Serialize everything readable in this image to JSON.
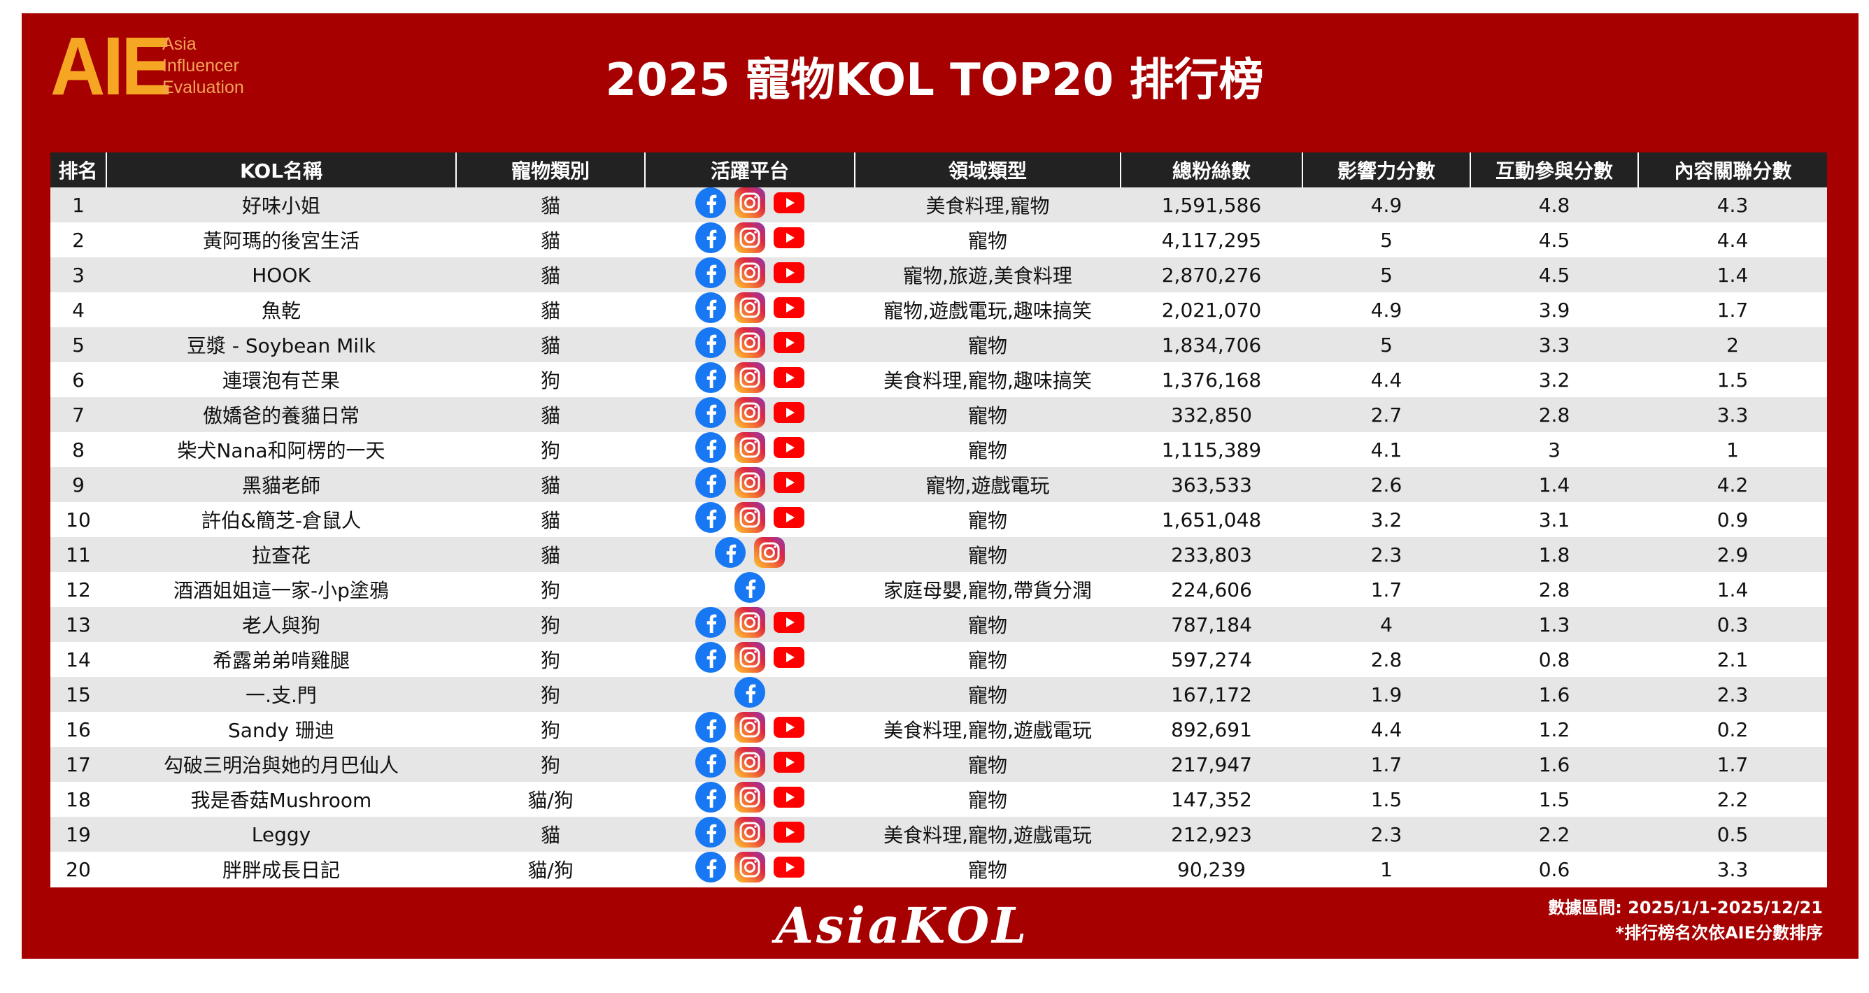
{
  "logo": {
    "mark": "AIE",
    "line1": "Asia",
    "line2": "Influencer",
    "line3": "Evaluation"
  },
  "title": "2025 寵物KOL TOP20 排行榜",
  "columns": [
    "排名",
    "KOL名稱",
    "寵物類別",
    "活躍平台",
    "領域類型",
    "總粉絲數",
    "影響力分數",
    "互動參與分數",
    "內容關聯分數"
  ],
  "colors": {
    "frame": "#a60000",
    "header_bg": "#222222",
    "row_alt": "#e6e6e6",
    "logo": "#f5a623",
    "facebook": "#1877f2",
    "youtube": "#ff0000"
  },
  "rows": [
    {
      "rank": "1",
      "name": "好味小姐",
      "pet": "貓",
      "platforms": [
        "facebook",
        "instagram",
        "youtube"
      ],
      "domain": "美食料理,寵物",
      "fans": "1,591,586",
      "influence": "4.9",
      "engagement": "4.8",
      "relevance": "4.3"
    },
    {
      "rank": "2",
      "name": "黃阿瑪的後宮生活",
      "pet": "貓",
      "platforms": [
        "facebook",
        "instagram",
        "youtube"
      ],
      "domain": "寵物",
      "fans": "4,117,295",
      "influence": "5",
      "engagement": "4.5",
      "relevance": "4.4"
    },
    {
      "rank": "3",
      "name": "HOOK",
      "pet": "貓",
      "platforms": [
        "facebook",
        "instagram",
        "youtube"
      ],
      "domain": "寵物,旅遊,美食料理",
      "fans": "2,870,276",
      "influence": "5",
      "engagement": "4.5",
      "relevance": "1.4"
    },
    {
      "rank": "4",
      "name": "魚乾",
      "pet": "貓",
      "platforms": [
        "facebook",
        "instagram",
        "youtube"
      ],
      "domain": "寵物,遊戲電玩,趣味搞笑",
      "fans": "2,021,070",
      "influence": "4.9",
      "engagement": "3.9",
      "relevance": "1.7"
    },
    {
      "rank": "5",
      "name": "豆漿 - Soybean Milk",
      "pet": "貓",
      "platforms": [
        "facebook",
        "instagram",
        "youtube"
      ],
      "domain": "寵物",
      "fans": "1,834,706",
      "influence": "5",
      "engagement": "3.3",
      "relevance": "2"
    },
    {
      "rank": "6",
      "name": "連環泡有芒果",
      "pet": "狗",
      "platforms": [
        "facebook",
        "instagram",
        "youtube"
      ],
      "domain": "美食料理,寵物,趣味搞笑",
      "fans": "1,376,168",
      "influence": "4.4",
      "engagement": "3.2",
      "relevance": "1.5"
    },
    {
      "rank": "7",
      "name": "傲嬌爸的養貓日常",
      "pet": "貓",
      "platforms": [
        "facebook",
        "instagram",
        "youtube"
      ],
      "domain": "寵物",
      "fans": "332,850",
      "influence": "2.7",
      "engagement": "2.8",
      "relevance": "3.3"
    },
    {
      "rank": "8",
      "name": "柴犬Nana和阿楞的一天",
      "pet": "狗",
      "platforms": [
        "facebook",
        "instagram",
        "youtube"
      ],
      "domain": "寵物",
      "fans": "1,115,389",
      "influence": "4.1",
      "engagement": "3",
      "relevance": "1"
    },
    {
      "rank": "9",
      "name": "黑貓老師",
      "pet": "貓",
      "platforms": [
        "facebook",
        "instagram",
        "youtube"
      ],
      "domain": "寵物,遊戲電玩",
      "fans": "363,533",
      "influence": "2.6",
      "engagement": "1.4",
      "relevance": "4.2"
    },
    {
      "rank": "10",
      "name": "許伯&簡芝-倉鼠人",
      "pet": "貓",
      "platforms": [
        "facebook",
        "instagram",
        "youtube"
      ],
      "domain": "寵物",
      "fans": "1,651,048",
      "influence": "3.2",
      "engagement": "3.1",
      "relevance": "0.9"
    },
    {
      "rank": "11",
      "name": "拉查花",
      "pet": "貓",
      "platforms": [
        "facebook",
        "instagram"
      ],
      "domain": "寵物",
      "fans": "233,803",
      "influence": "2.3",
      "engagement": "1.8",
      "relevance": "2.9"
    },
    {
      "rank": "12",
      "name": "酒酒姐姐這一家-小p塗鴉",
      "pet": "狗",
      "platforms": [
        "facebook"
      ],
      "domain": "家庭母嬰,寵物,帶貨分潤",
      "fans": "224,606",
      "influence": "1.7",
      "engagement": "2.8",
      "relevance": "1.4"
    },
    {
      "rank": "13",
      "name": "老人與狗",
      "pet": "狗",
      "platforms": [
        "facebook",
        "instagram",
        "youtube"
      ],
      "domain": "寵物",
      "fans": "787,184",
      "influence": "4",
      "engagement": "1.3",
      "relevance": "0.3"
    },
    {
      "rank": "14",
      "name": "希露弟弟啃雞腿",
      "pet": "狗",
      "platforms": [
        "facebook",
        "instagram",
        "youtube"
      ],
      "domain": "寵物",
      "fans": "597,274",
      "influence": "2.8",
      "engagement": "0.8",
      "relevance": "2.1"
    },
    {
      "rank": "15",
      "name": "一.支.門",
      "pet": "狗",
      "platforms": [
        "facebook"
      ],
      "domain": "寵物",
      "fans": "167,172",
      "influence": "1.9",
      "engagement": "1.6",
      "relevance": "2.3"
    },
    {
      "rank": "16",
      "name": "Sandy 珊迪",
      "pet": "狗",
      "platforms": [
        "facebook",
        "instagram",
        "youtube"
      ],
      "domain": "美食料理,寵物,遊戲電玩",
      "fans": "892,691",
      "influence": "4.4",
      "engagement": "1.2",
      "relevance": "0.2"
    },
    {
      "rank": "17",
      "name": "勾破三明治與她的月巴仙人",
      "pet": "狗",
      "platforms": [
        "facebook",
        "instagram",
        "youtube"
      ],
      "domain": "寵物",
      "fans": "217,947",
      "influence": "1.7",
      "engagement": "1.6",
      "relevance": "1.7"
    },
    {
      "rank": "18",
      "name": "我是香菇Mushroom",
      "pet": "貓/狗",
      "platforms": [
        "facebook",
        "instagram",
        "youtube"
      ],
      "domain": "寵物",
      "fans": "147,352",
      "influence": "1.5",
      "engagement": "1.5",
      "relevance": "2.2"
    },
    {
      "rank": "19",
      "name": "Leggy",
      "pet": "貓",
      "platforms": [
        "facebook",
        "instagram",
        "youtube"
      ],
      "domain": "美食料理,寵物,遊戲電玩",
      "fans": "212,923",
      "influence": "2.3",
      "engagement": "2.2",
      "relevance": "0.5"
    },
    {
      "rank": "20",
      "name": "胖胖成長日記",
      "pet": "貓/狗",
      "platforms": [
        "facebook",
        "instagram",
        "youtube"
      ],
      "domain": "寵物",
      "fans": "90,239",
      "influence": "1",
      "engagement": "0.6",
      "relevance": "3.3"
    }
  ],
  "footer": {
    "brand": "AsiaKOL",
    "date_range": "數據區間: 2025/1/1-2025/12/21",
    "note": "*排行榜名次依AIE分數排序"
  }
}
